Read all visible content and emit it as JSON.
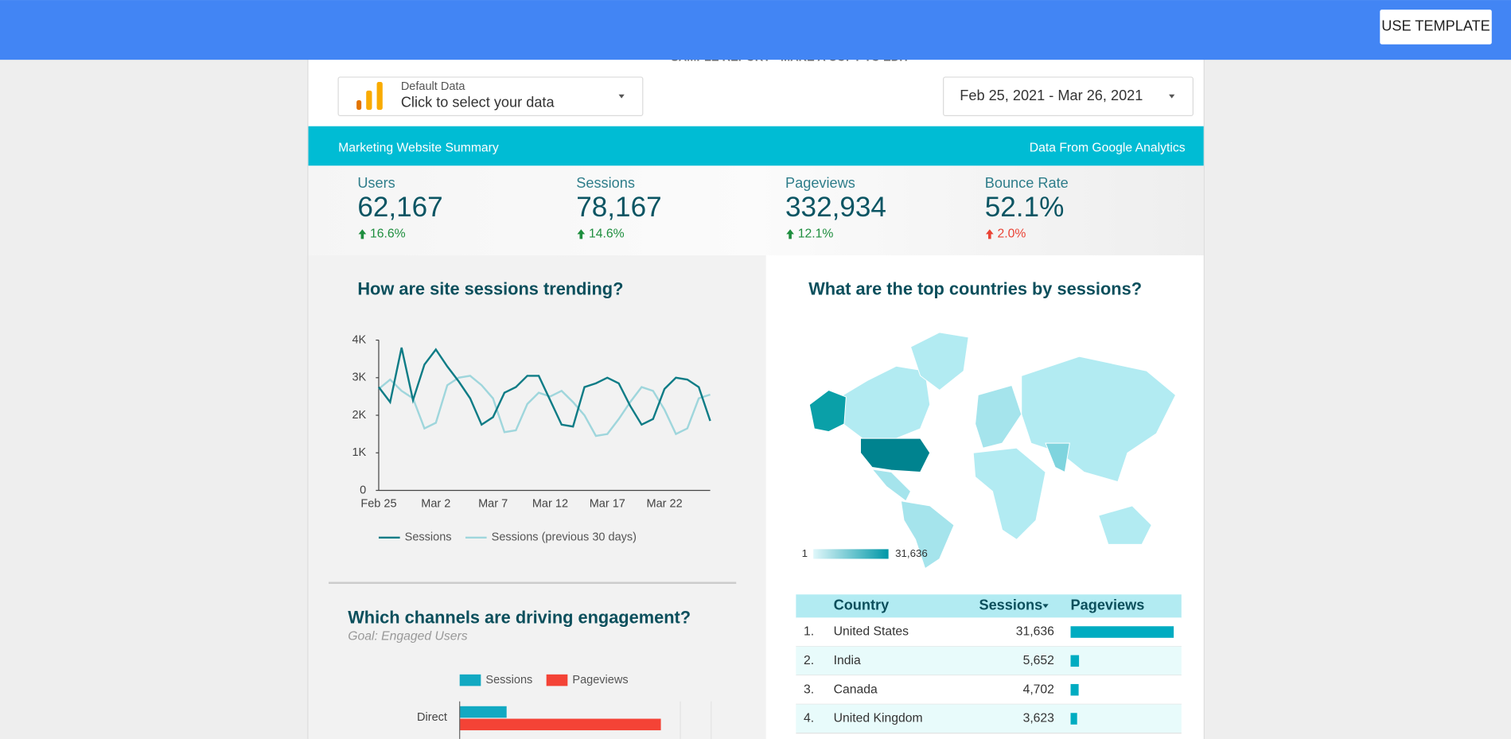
{
  "header": {
    "button": "USE TEMPLATE",
    "notice": "SAMPLE REPORT - MAKE A COPY TO EDIT"
  },
  "controls": {
    "data_source": {
      "label": "Default Data",
      "prompt": "Click to select your data"
    },
    "date_range": "Feb 25, 2021 - Mar 26, 2021"
  },
  "banner": {
    "left": "Marketing Website Summary",
    "right": "Data From Google Analytics"
  },
  "scorecards": [
    {
      "label": "Users",
      "value": "62,167",
      "delta": "16.6%",
      "delta_color": "#1e8e3e"
    },
    {
      "label": "Sessions",
      "value": "78,167",
      "delta": "14.6%",
      "delta_color": "#1e8e3e"
    },
    {
      "label": "Pageviews",
      "value": "332,934",
      "delta": "12.1%",
      "delta_color": "#1e8e3e"
    },
    {
      "label": "Bounce Rate",
      "value": "52.1%",
      "delta": "2.0%",
      "delta_color": "#ea4335"
    }
  ],
  "chart_data": [
    {
      "type": "line",
      "title": "How are site sessions trending?",
      "categories": [
        "Feb 25",
        null,
        null,
        null,
        null,
        "Mar 2",
        null,
        null,
        null,
        null,
        "Mar 7",
        null,
        null,
        null,
        null,
        "Mar 12",
        null,
        null,
        null,
        null,
        "Mar 17",
        null,
        null,
        null,
        null,
        "Mar 22",
        null,
        null,
        null,
        null
      ],
      "series": [
        {
          "name": "Sessions",
          "color": "#0e7c86",
          "values": [
            2750,
            2350,
            3800,
            2400,
            3350,
            3750,
            3300,
            2900,
            2450,
            1750,
            1950,
            2600,
            2750,
            3050,
            3050,
            2400,
            1750,
            1700,
            2750,
            2850,
            3000,
            2850,
            2250,
            1750,
            1900,
            2700,
            3000,
            2950,
            2750,
            1850
          ]
        },
        {
          "name": "Sessions (previous 30 days)",
          "color": "#9fd6dc",
          "values": [
            2700,
            2950,
            2650,
            2450,
            1650,
            1800,
            2800,
            3000,
            3050,
            2800,
            2450,
            1550,
            1600,
            2300,
            2600,
            2500,
            2650,
            2350,
            2000,
            1450,
            1500,
            1900,
            2350,
            2750,
            2650,
            2150,
            1500,
            1650,
            2450,
            2550
          ]
        }
      ],
      "ylim": [
        0,
        4000
      ],
      "yticks": [
        0,
        {
          "value": 1000,
          "label": "1K"
        },
        {
          "value": 2000,
          "label": "2K"
        },
        {
          "value": 3000,
          "label": "3K"
        },
        {
          "value": 4000,
          "label": "4K"
        }
      ]
    },
    {
      "type": "bar",
      "orientation": "horizontal",
      "title": "Which channels are driving engagement?",
      "subtitle": "Goal: Engaged Users",
      "categories": [
        "Direct"
      ],
      "series": [
        {
          "name": "Sessions",
          "color": "#12a9c2",
          "values": [
            5600
          ]
        },
        {
          "name": "Pageviews",
          "color": "#f44336",
          "values": [
            24000
          ]
        }
      ],
      "xlim": [
        0,
        30000
      ]
    }
  ],
  "map": {
    "title": "What are the top countries by sessions?",
    "legend_min": "1",
    "legend_max": "31,636"
  },
  "table": {
    "columns": [
      "Country",
      "Sessions",
      "Pageviews"
    ],
    "rows": [
      {
        "rank": "1.",
        "country": "United States",
        "sessions": "31,636",
        "pageviews": 135000
      },
      {
        "rank": "2.",
        "country": "India",
        "sessions": "5,652",
        "pageviews": 11000
      },
      {
        "rank": "3.",
        "country": "Canada",
        "sessions": "4,702",
        "pageviews": 10500
      },
      {
        "rank": "4.",
        "country": "United Kingdom",
        "sessions": "3,623",
        "pageviews": 8500
      }
    ]
  }
}
